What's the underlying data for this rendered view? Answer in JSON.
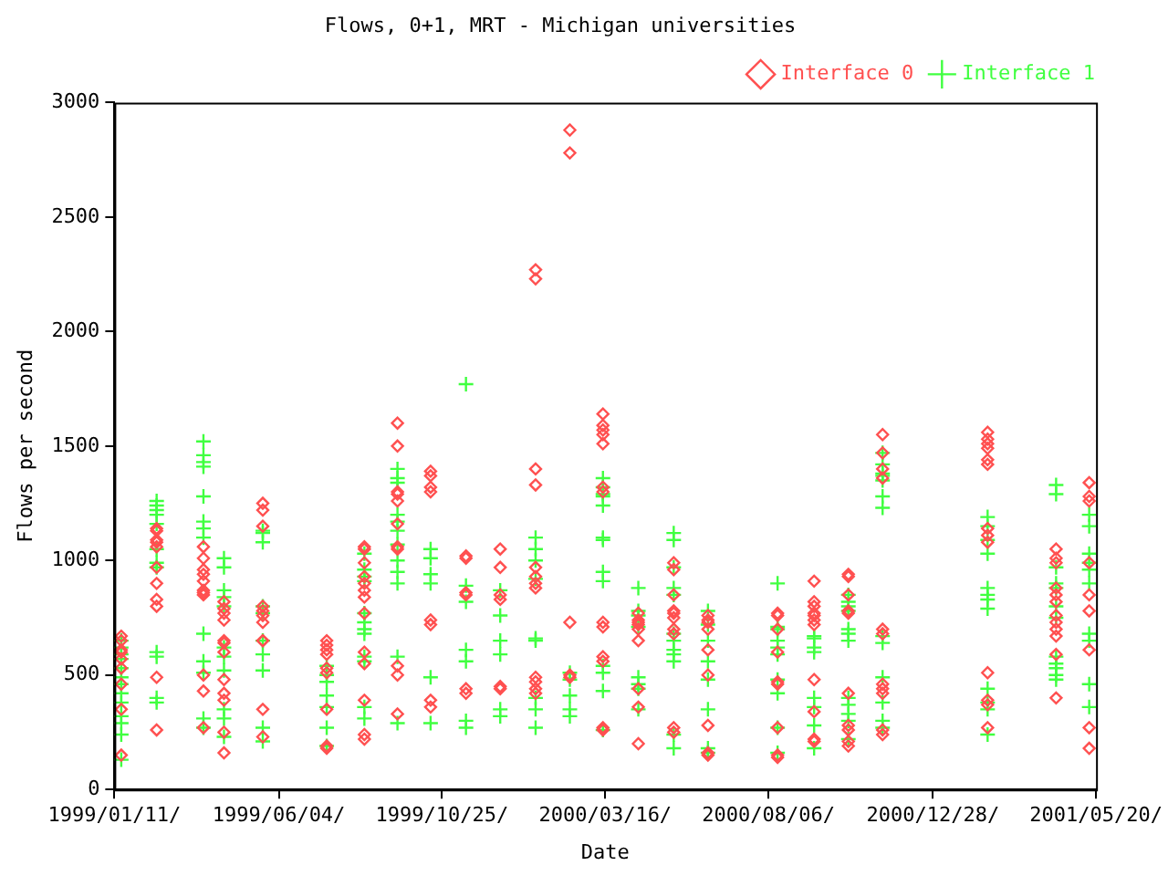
{
  "chart_data": {
    "type": "scatter",
    "title": "Flows, 0+1, MRT - Michigan universities",
    "xlabel": "Date",
    "ylabel": "Flows per second",
    "xlim": [
      "1999-01-11",
      "2001-05-20"
    ],
    "xticks": [
      {
        "value": "1999-01-11",
        "label": "1999/01/11/"
      },
      {
        "value": "1999-06-04",
        "label": "1999/06/04/"
      },
      {
        "value": "1999-10-25",
        "label": "1999/10/25/"
      },
      {
        "value": "2000-03-16",
        "label": "2000/03/16/"
      },
      {
        "value": "2000-08-06",
        "label": "2000/08/06/"
      },
      {
        "value": "2000-12-28",
        "label": "2000/12/28/"
      },
      {
        "value": "2001-05-20",
        "label": "2001/05/20/"
      }
    ],
    "ylim": [
      0,
      3000
    ],
    "yticks": [
      0,
      500,
      1000,
      1500,
      2000,
      2500,
      3000
    ],
    "grid": false,
    "legend": "top right",
    "series": [
      {
        "name": "Interface 0",
        "color": "#ff5050",
        "marker": "diamond",
        "x": [
          "1999-01-17",
          "1999-01-17",
          "1999-01-17",
          "1999-01-17",
          "1999-01-17",
          "1999-01-17",
          "1999-01-17",
          "1999-01-17",
          "1999-01-17",
          "1999-02-17",
          "1999-02-17",
          "1999-02-17",
          "1999-02-17",
          "1999-02-17",
          "1999-02-17",
          "1999-02-17",
          "1999-02-17",
          "1999-02-17",
          "1999-02-17",
          "1999-02-17",
          "1999-03-30",
          "1999-03-30",
          "1999-03-30",
          "1999-03-30",
          "1999-03-30",
          "1999-03-30",
          "1999-03-30",
          "1999-03-30",
          "1999-03-30",
          "1999-03-30",
          "1999-03-30",
          "1999-04-17",
          "1999-04-17",
          "1999-04-17",
          "1999-04-17",
          "1999-04-17",
          "1999-04-17",
          "1999-04-17",
          "1999-04-17",
          "1999-04-17",
          "1999-04-17",
          "1999-04-17",
          "1999-04-17",
          "1999-05-21",
          "1999-05-21",
          "1999-05-21",
          "1999-05-21",
          "1999-05-21",
          "1999-05-21",
          "1999-05-21",
          "1999-05-21",
          "1999-05-21",
          "1999-05-21",
          "1999-05-21",
          "1999-07-16",
          "1999-07-16",
          "1999-07-16",
          "1999-07-16",
          "1999-07-16",
          "1999-07-16",
          "1999-07-16",
          "1999-07-16",
          "1999-07-16",
          "1999-08-18",
          "1999-08-18",
          "1999-08-18",
          "1999-08-18",
          "1999-08-18",
          "1999-08-18",
          "1999-08-18",
          "1999-08-18",
          "1999-08-18",
          "1999-08-18",
          "1999-08-18",
          "1999-08-18",
          "1999-08-18",
          "1999-09-16",
          "1999-09-16",
          "1999-09-16",
          "1999-09-16",
          "1999-09-16",
          "1999-09-16",
          "1999-09-16",
          "1999-09-16",
          "1999-09-16",
          "1999-09-16",
          "1999-09-16",
          "1999-10-15",
          "1999-10-15",
          "1999-10-15",
          "1999-10-15",
          "1999-10-15",
          "1999-10-15",
          "1999-10-15",
          "1999-10-15",
          "1999-11-15",
          "1999-11-15",
          "1999-11-15",
          "1999-11-15",
          "1999-11-15",
          "1999-11-15",
          "1999-12-15",
          "1999-12-15",
          "1999-12-15",
          "1999-12-15",
          "1999-12-15",
          "1999-12-15",
          "2000-01-15",
          "2000-01-15",
          "2000-01-15",
          "2000-01-15",
          "2000-01-15",
          "2000-01-15",
          "2000-01-15",
          "2000-01-15",
          "2000-01-15",
          "2000-01-15",
          "2000-01-15",
          "2000-01-15",
          "2000-02-14",
          "2000-02-14",
          "2000-02-14",
          "2000-02-14",
          "2000-02-14",
          "2000-03-14",
          "2000-03-14",
          "2000-03-14",
          "2000-03-14",
          "2000-03-14",
          "2000-03-14",
          "2000-03-14",
          "2000-03-14",
          "2000-03-14",
          "2000-03-14",
          "2000-03-14",
          "2000-03-14",
          "2000-03-14",
          "2000-04-14",
          "2000-04-14",
          "2000-04-14",
          "2000-04-14",
          "2000-04-14",
          "2000-04-14",
          "2000-04-14",
          "2000-04-14",
          "2000-04-14",
          "2000-05-15",
          "2000-05-15",
          "2000-05-15",
          "2000-05-15",
          "2000-05-15",
          "2000-05-15",
          "2000-05-15",
          "2000-05-15",
          "2000-05-15",
          "2000-05-15",
          "2000-06-14",
          "2000-06-14",
          "2000-06-14",
          "2000-06-14",
          "2000-06-14",
          "2000-06-14",
          "2000-06-14",
          "2000-06-14",
          "2000-06-14",
          "2000-08-14",
          "2000-08-14",
          "2000-08-14",
          "2000-08-14",
          "2000-08-14",
          "2000-08-14",
          "2000-08-14",
          "2000-08-14",
          "2000-08-14",
          "2000-09-15",
          "2000-09-15",
          "2000-09-15",
          "2000-09-15",
          "2000-09-15",
          "2000-09-15",
          "2000-09-15",
          "2000-09-15",
          "2000-09-15",
          "2000-09-15",
          "2000-09-15",
          "2000-10-15",
          "2000-10-15",
          "2000-10-15",
          "2000-10-15",
          "2000-10-15",
          "2000-10-15",
          "2000-10-15",
          "2000-10-15",
          "2000-10-15",
          "2000-10-15",
          "2000-11-14",
          "2000-11-14",
          "2000-11-14",
          "2000-11-14",
          "2000-11-14",
          "2000-11-14",
          "2000-11-14",
          "2000-11-14",
          "2000-11-14",
          "2000-11-14",
          "2000-11-14",
          "2001-02-14",
          "2001-02-14",
          "2001-02-14",
          "2001-02-14",
          "2001-02-14",
          "2001-02-14",
          "2001-02-14",
          "2001-02-14",
          "2001-02-14",
          "2001-02-14",
          "2001-02-14",
          "2001-02-14",
          "2001-02-14",
          "2001-04-15",
          "2001-04-15",
          "2001-04-15",
          "2001-04-15",
          "2001-04-15",
          "2001-04-15",
          "2001-04-15",
          "2001-04-15",
          "2001-04-15",
          "2001-04-15",
          "2001-04-15",
          "2001-04-15",
          "2001-05-14",
          "2001-05-14",
          "2001-05-14",
          "2001-05-14",
          "2001-05-14",
          "2001-05-14",
          "2001-05-14",
          "2001-05-14",
          "2001-05-14"
        ],
        "values": [
          670,
          650,
          610,
          600,
          570,
          530,
          460,
          350,
          150,
          1140,
          1130,
          1090,
          1080,
          1060,
          970,
          900,
          830,
          800,
          490,
          260,
          1060,
          1010,
          960,
          940,
          910,
          870,
          860,
          850,
          500,
          430,
          270,
          820,
          790,
          770,
          740,
          650,
          640,
          600,
          480,
          420,
          390,
          250,
          160,
          1250,
          1220,
          1150,
          800,
          780,
          760,
          730,
          650,
          650,
          350,
          230,
          650,
          630,
          610,
          590,
          530,
          510,
          350,
          190,
          180,
          1060,
          1050,
          990,
          930,
          900,
          870,
          840,
          770,
          600,
          550,
          390,
          240,
          220,
          1600,
          1500,
          1300,
          1290,
          1260,
          1160,
          1060,
          1050,
          540,
          500,
          330,
          1390,
          1370,
          1320,
          1300,
          740,
          720,
          390,
          360,
          1020,
          1010,
          860,
          850,
          440,
          420,
          1050,
          970,
          850,
          830,
          450,
          440,
          2270,
          2230,
          1400,
          1330,
          970,
          930,
          900,
          880,
          490,
          470,
          440,
          420,
          2880,
          2780,
          730,
          500,
          490,
          1640,
          1590,
          1570,
          1550,
          1510,
          1320,
          1300,
          730,
          710,
          580,
          560,
          270,
          260,
          770,
          740,
          730,
          720,
          700,
          650,
          440,
          360,
          200,
          990,
          960,
          850,
          780,
          770,
          750,
          700,
          680,
          270,
          250,
          760,
          740,
          730,
          700,
          610,
          500,
          280,
          160,
          150,
          770,
          760,
          700,
          600,
          470,
          460,
          270,
          150,
          140,
          910,
          820,
          800,
          770,
          760,
          740,
          720,
          480,
          340,
          220,
          210,
          940,
          930,
          850,
          780,
          770,
          420,
          280,
          260,
          210,
          190,
          1550,
          1470,
          1400,
          1360,
          700,
          680,
          460,
          440,
          420,
          260,
          240,
          1560,
          1530,
          1510,
          1490,
          1440,
          1420,
          1140,
          1110,
          1080,
          510,
          390,
          370,
          270,
          1050,
          1010,
          990,
          880,
          850,
          820,
          760,
          730,
          700,
          670,
          590,
          400,
          1340,
          1280,
          1260,
          990,
          850,
          780,
          610,
          270,
          180
        ]
      },
      {
        "name": "Interface 1",
        "color": "#40ff40",
        "marker": "cross",
        "x": [
          "1999-01-17",
          "1999-01-17",
          "1999-01-17",
          "1999-01-17",
          "1999-01-17",
          "1999-01-17",
          "1999-01-17",
          "1999-01-17",
          "1999-01-17",
          "1999-01-17",
          "1999-01-17",
          "1999-01-17",
          "1999-01-17",
          "1999-02-17",
          "1999-02-17",
          "1999-02-17",
          "1999-02-17",
          "1999-02-17",
          "1999-02-17",
          "1999-02-17",
          "1999-02-17",
          "1999-02-17",
          "1999-02-17",
          "1999-02-17",
          "1999-02-17",
          "1999-03-30",
          "1999-03-30",
          "1999-03-30",
          "1999-03-30",
          "1999-03-30",
          "1999-03-30",
          "1999-03-30",
          "1999-03-30",
          "1999-03-30",
          "1999-03-30",
          "1999-03-30",
          "1999-03-30",
          "1999-03-30",
          "1999-04-17",
          "1999-04-17",
          "1999-04-17",
          "1999-04-17",
          "1999-04-17",
          "1999-04-17",
          "1999-04-17",
          "1999-04-17",
          "1999-04-17",
          "1999-04-17",
          "1999-04-17",
          "1999-05-21",
          "1999-05-21",
          "1999-05-21",
          "1999-05-21",
          "1999-05-21",
          "1999-05-21",
          "1999-05-21",
          "1999-05-21",
          "1999-05-21",
          "1999-05-21",
          "1999-07-16",
          "1999-07-16",
          "1999-07-16",
          "1999-07-16",
          "1999-07-16",
          "1999-07-16",
          "1999-07-16",
          "1999-08-18",
          "1999-08-18",
          "1999-08-18",
          "1999-08-18",
          "1999-08-18",
          "1999-08-18",
          "1999-08-18",
          "1999-08-18",
          "1999-08-18",
          "1999-08-18",
          "1999-08-18",
          "1999-08-18",
          "1999-09-16",
          "1999-09-16",
          "1999-09-16",
          "1999-09-16",
          "1999-09-16",
          "1999-09-16",
          "1999-09-16",
          "1999-09-16",
          "1999-09-16",
          "1999-09-16",
          "1999-09-16",
          "1999-09-16",
          "1999-10-15",
          "1999-10-15",
          "1999-10-15",
          "1999-10-15",
          "1999-10-15",
          "1999-10-15",
          "1999-11-15",
          "1999-11-15",
          "1999-11-15",
          "1999-11-15",
          "1999-11-15",
          "1999-11-15",
          "1999-11-15",
          "1999-12-15",
          "1999-12-15",
          "1999-12-15",
          "1999-12-15",
          "1999-12-15",
          "1999-12-15",
          "2000-01-15",
          "2000-01-15",
          "2000-01-15",
          "2000-01-15",
          "2000-01-15",
          "2000-01-15",
          "2000-01-15",
          "2000-01-15",
          "2000-01-15",
          "2000-02-14",
          "2000-02-14",
          "2000-02-14",
          "2000-02-14",
          "2000-02-14",
          "2000-03-14",
          "2000-03-14",
          "2000-03-14",
          "2000-03-14",
          "2000-03-14",
          "2000-03-14",
          "2000-03-14",
          "2000-03-14",
          "2000-03-14",
          "2000-03-14",
          "2000-03-14",
          "2000-03-14",
          "2000-03-14",
          "2000-04-14",
          "2000-04-14",
          "2000-04-14",
          "2000-04-14",
          "2000-04-14",
          "2000-04-14",
          "2000-04-14",
          "2000-04-14",
          "2000-05-15",
          "2000-05-15",
          "2000-05-15",
          "2000-05-15",
          "2000-05-15",
          "2000-05-15",
          "2000-05-15",
          "2000-05-15",
          "2000-05-15",
          "2000-05-15",
          "2000-05-15",
          "2000-05-15",
          "2000-06-14",
          "2000-06-14",
          "2000-06-14",
          "2000-06-14",
          "2000-06-14",
          "2000-06-14",
          "2000-06-14",
          "2000-06-14",
          "2000-08-14",
          "2000-08-14",
          "2000-08-14",
          "2000-08-14",
          "2000-08-14",
          "2000-08-14",
          "2000-08-14",
          "2000-08-14",
          "2000-08-14",
          "2000-08-14",
          "2000-09-15",
          "2000-09-15",
          "2000-09-15",
          "2000-09-15",
          "2000-09-15",
          "2000-09-15",
          "2000-09-15",
          "2000-09-15",
          "2000-10-15",
          "2000-10-15",
          "2000-10-15",
          "2000-10-15",
          "2000-10-15",
          "2000-10-15",
          "2000-10-15",
          "2000-10-15",
          "2000-10-15",
          "2000-10-15",
          "2000-10-15",
          "2000-10-15",
          "2000-11-14",
          "2000-11-14",
          "2000-11-14",
          "2000-11-14",
          "2000-11-14",
          "2000-11-14",
          "2000-11-14",
          "2000-11-14",
          "2000-11-14",
          "2000-11-14",
          "2000-11-14",
          "2000-11-14",
          "2000-11-14",
          "2001-02-14",
          "2001-02-14",
          "2001-02-14",
          "2001-02-14",
          "2001-02-14",
          "2001-02-14",
          "2001-02-14",
          "2001-02-14",
          "2001-02-14",
          "2001-02-14",
          "2001-02-14",
          "2001-02-14",
          "2001-04-15",
          "2001-04-15",
          "2001-04-15",
          "2001-04-15",
          "2001-04-15",
          "2001-04-15",
          "2001-04-15",
          "2001-04-15",
          "2001-04-15",
          "2001-04-15",
          "2001-04-15",
          "2001-04-15",
          "2001-05-14",
          "2001-05-14",
          "2001-05-14",
          "2001-05-14",
          "2001-05-14",
          "2001-05-14",
          "2001-05-14",
          "2001-05-14",
          "2001-05-14",
          "2001-05-14"
        ],
        "values": [
          650,
          620,
          590,
          570,
          530,
          490,
          460,
          420,
          380,
          320,
          290,
          240,
          130,
          1260,
          1240,
          1220,
          1200,
          1160,
          1050,
          990,
          970,
          600,
          580,
          400,
          380,
          1520,
          1460,
          1430,
          1410,
          1280,
          1170,
          1140,
          1100,
          680,
          560,
          510,
          310,
          270,
          1010,
          970,
          870,
          840,
          800,
          620,
          580,
          520,
          350,
          310,
          230,
          1130,
          1120,
          1080,
          800,
          770,
          650,
          590,
          520,
          270,
          210,
          540,
          500,
          470,
          410,
          360,
          270,
          190,
          1030,
          960,
          930,
          910,
          770,
          730,
          700,
          680,
          580,
          560,
          360,
          310,
          1400,
          1360,
          1340,
          1200,
          1170,
          1130,
          1070,
          1000,
          950,
          900,
          580,
          290,
          1050,
          1010,
          940,
          900,
          490,
          290,
          1770,
          890,
          820,
          610,
          560,
          300,
          270,
          870,
          760,
          650,
          590,
          350,
          320,
          1100,
          1050,
          1000,
          920,
          660,
          650,
          400,
          350,
          270,
          510,
          480,
          410,
          350,
          320,
          1360,
          1320,
          1290,
          1280,
          1240,
          1100,
          1090,
          950,
          910,
          540,
          510,
          430,
          260,
          880,
          780,
          760,
          710,
          490,
          460,
          440,
          350,
          1120,
          1090,
          970,
          880,
          850,
          680,
          650,
          610,
          590,
          560,
          240,
          180,
          780,
          720,
          650,
          560,
          480,
          350,
          180,
          160,
          900,
          710,
          700,
          650,
          620,
          590,
          480,
          420,
          270,
          160,
          670,
          660,
          620,
          600,
          400,
          360,
          280,
          180,
          850,
          820,
          800,
          780,
          700,
          680,
          650,
          400,
          370,
          330,
          300,
          220,
          1470,
          1420,
          1380,
          1370,
          1350,
          1280,
          1230,
          670,
          640,
          490,
          380,
          300,
          270,
          1190,
          1150,
          1090,
          1030,
          880,
          850,
          830,
          790,
          440,
          380,
          350,
          240,
          1330,
          1290,
          970,
          900,
          880,
          800,
          750,
          580,
          550,
          530,
          500,
          480,
          1200,
          1150,
          1030,
          990,
          960,
          900,
          680,
          650,
          460,
          360
        ]
      }
    ]
  }
}
